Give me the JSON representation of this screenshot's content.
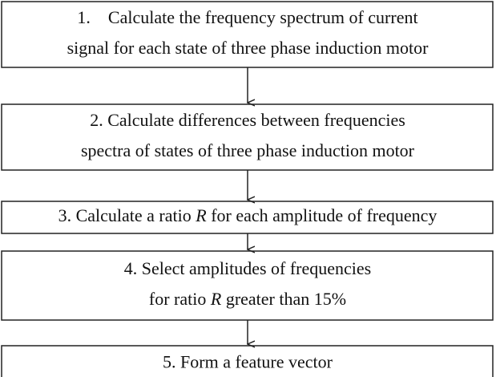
{
  "nodes": [
    {
      "lines": [
        [
          {
            "text": "1.    Calculate the frequency spectrum of current"
          }
        ],
        [
          {
            "text": "signal for each state of three phase induction motor"
          }
        ]
      ]
    },
    {
      "lines": [
        [
          {
            "text": "2. Calculate differences between frequencies"
          }
        ],
        [
          {
            "text": "spectra of states of three phase induction motor"
          }
        ]
      ]
    },
    {
      "lines": [
        [
          {
            "text": "3. Calculate a ratio "
          },
          {
            "text": "R",
            "italic": true
          },
          {
            "text": " for each amplitude of frequency"
          }
        ]
      ]
    },
    {
      "lines": [
        [
          {
            "text": "4. Select amplitudes of frequencies"
          }
        ],
        [
          {
            "text": "for ratio "
          },
          {
            "text": "R",
            "italic": true
          },
          {
            "text": " greater than 15%"
          }
        ]
      ]
    },
    {
      "lines": [
        [
          {
            "text": "5. Form a feature vector"
          }
        ]
      ]
    }
  ]
}
